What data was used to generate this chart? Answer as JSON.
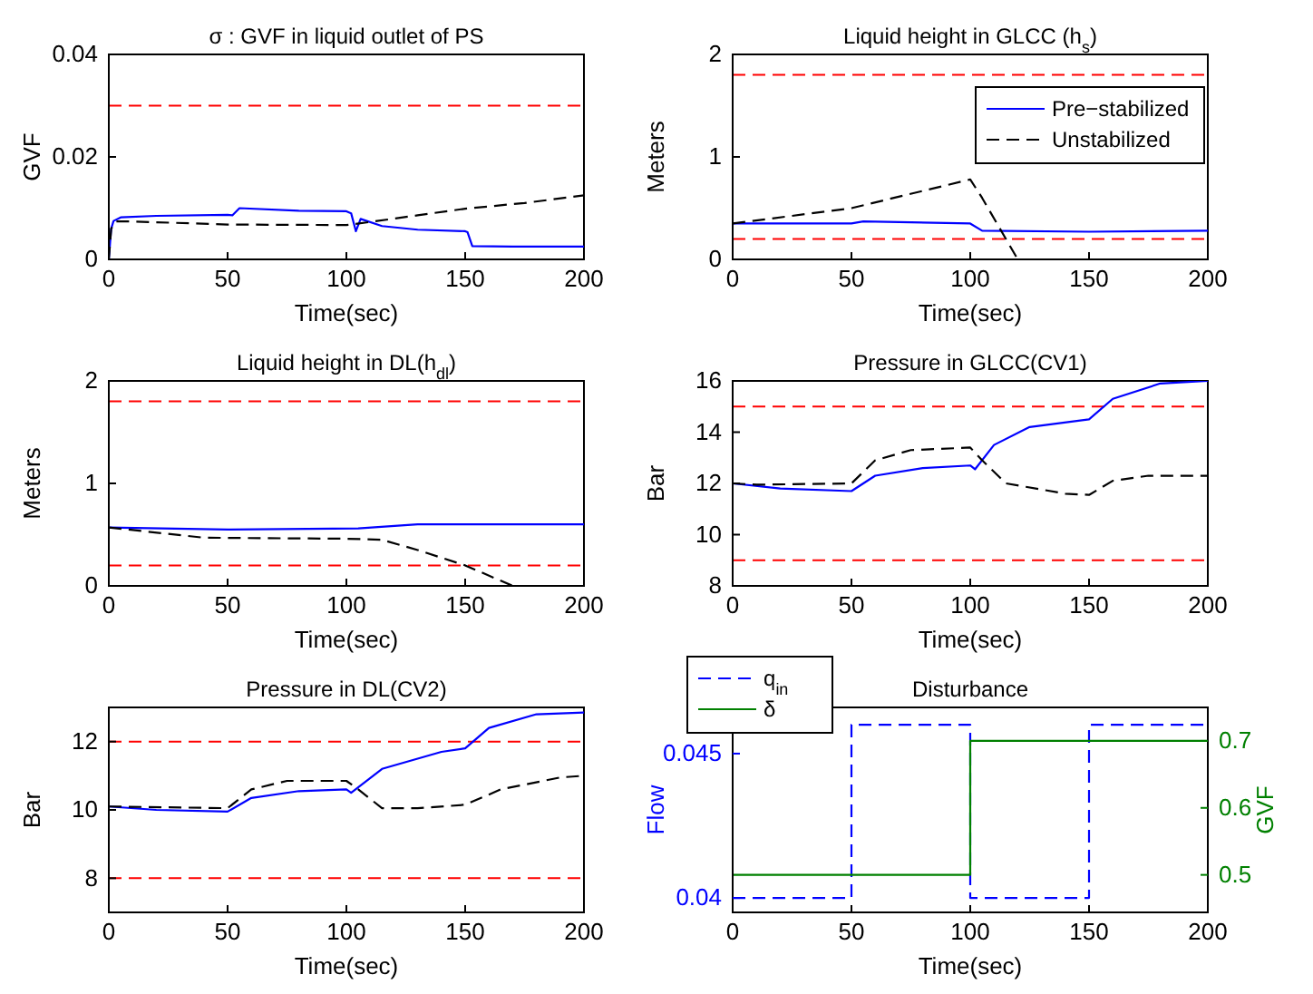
{
  "chart_data": [
    {
      "type": "line",
      "title": "σ : GVF in liquid outlet of PS",
      "xlabel": "Time(sec)",
      "ylabel": "GVF",
      "xlim": [
        0,
        200
      ],
      "xticks": [
        0,
        50,
        100,
        150,
        200
      ],
      "ylim": [
        0,
        0.04
      ],
      "yticks": [
        0,
        0.02,
        0.04
      ],
      "legend": false,
      "ref_lines": [
        {
          "axis": "y",
          "value": 0.03,
          "color": "#ff0000",
          "line_style": "dashed"
        }
      ],
      "series": [
        {
          "color": "#0000ff",
          "line_style": "solid",
          "x": [
            0,
            1,
            2,
            5,
            20,
            50,
            52,
            55,
            80,
            100,
            102,
            104,
            106,
            115,
            130,
            150,
            151,
            153,
            170,
            200
          ],
          "values": [
            0,
            0.006,
            0.0075,
            0.0082,
            0.0085,
            0.0087,
            0.0086,
            0.01,
            0.0095,
            0.0094,
            0.009,
            0.0055,
            0.0079,
            0.0065,
            0.0058,
            0.0055,
            0.0053,
            0.0026,
            0.0025,
            0.0025
          ]
        },
        {
          "color": "#000000",
          "line_style": "dashed",
          "x": [
            0,
            1,
            3,
            10,
            50,
            100,
            110,
            130,
            150,
            175,
            200
          ],
          "values": [
            0,
            0.006,
            0.0074,
            0.0074,
            0.0068,
            0.0067,
            0.0073,
            0.0086,
            0.0099,
            0.011,
            0.0125
          ]
        }
      ]
    },
    {
      "type": "line",
      "title": "Liquid height in GLCC (h$_{s}$)",
      "xlabel": "Time(sec)",
      "ylabel": "Meters",
      "xlim": [
        0,
        200
      ],
      "xticks": [
        0,
        50,
        100,
        150,
        200
      ],
      "ylim": [
        0,
        2
      ],
      "yticks": [
        0,
        1,
        2
      ],
      "legend": "top right",
      "ref_lines": [
        {
          "axis": "y",
          "value": 1.8,
          "color": "#ff0000",
          "line_style": "dashed"
        },
        {
          "axis": "y",
          "value": 0.2,
          "color": "#ff0000",
          "line_style": "dashed"
        }
      ],
      "series": [
        {
          "name": "Pre−stabilized",
          "color": "#0000ff",
          "line_style": "solid",
          "x": [
            0,
            50,
            55,
            100,
            105,
            150,
            200
          ],
          "values": [
            0.35,
            0.35,
            0.37,
            0.35,
            0.28,
            0.27,
            0.28
          ]
        },
        {
          "name": "Unstabilized",
          "color": "#000000",
          "line_style": "dashed",
          "x": [
            0,
            50,
            100,
            105,
            120
          ],
          "values": [
            0.35,
            0.5,
            0.78,
            0.6,
            0
          ]
        }
      ]
    },
    {
      "type": "line",
      "title": "Liquid height in DL(h$_{dl}$)",
      "xlabel": "Time(sec)",
      "ylabel": "Meters",
      "xlim": [
        0,
        200
      ],
      "xticks": [
        0,
        50,
        100,
        150,
        200
      ],
      "ylim": [
        0,
        2
      ],
      "yticks": [
        0,
        1,
        2
      ],
      "legend": false,
      "ref_lines": [
        {
          "axis": "y",
          "value": 1.8,
          "color": "#ff0000",
          "line_style": "dashed"
        },
        {
          "axis": "y",
          "value": 0.2,
          "color": "#ff0000",
          "line_style": "dashed"
        }
      ],
      "series": [
        {
          "color": "#0000ff",
          "line_style": "solid",
          "x": [
            0,
            50,
            105,
            130,
            200
          ],
          "values": [
            0.57,
            0.55,
            0.56,
            0.6,
            0.6
          ]
        },
        {
          "color": "#000000",
          "line_style": "dashed",
          "x": [
            0,
            40,
            100,
            115,
            130,
            150,
            170
          ],
          "values": [
            0.57,
            0.47,
            0.46,
            0.45,
            0.35,
            0.2,
            0
          ]
        }
      ]
    },
    {
      "type": "line",
      "title": "Pressure in GLCC(CV1)",
      "xlabel": "Time(sec)",
      "ylabel": "Bar",
      "xlim": [
        0,
        200
      ],
      "xticks": [
        0,
        50,
        100,
        150,
        200
      ],
      "ylim": [
        8,
        16
      ],
      "yticks": [
        8,
        10,
        12,
        14,
        16
      ],
      "legend": false,
      "ref_lines": [
        {
          "axis": "y",
          "value": 15,
          "color": "#ff0000",
          "line_style": "dashed"
        },
        {
          "axis": "y",
          "value": 9,
          "color": "#ff0000",
          "line_style": "dashed"
        }
      ],
      "series": [
        {
          "color": "#0000ff",
          "line_style": "solid",
          "x": [
            0,
            20,
            50,
            60,
            80,
            100,
            102,
            110,
            125,
            150,
            160,
            180,
            200
          ],
          "values": [
            12,
            11.8,
            11.7,
            12.3,
            12.6,
            12.7,
            12.55,
            13.5,
            14.2,
            14.5,
            15.3,
            15.9,
            16
          ]
        },
        {
          "color": "#000000",
          "line_style": "dashed",
          "x": [
            0,
            10,
            50,
            60,
            75,
            100,
            105,
            115,
            140,
            150,
            160,
            175,
            200
          ],
          "values": [
            12,
            11.95,
            12,
            12.9,
            13.3,
            13.4,
            12.9,
            12,
            11.6,
            11.55,
            12.1,
            12.3,
            12.3
          ]
        }
      ]
    },
    {
      "type": "line",
      "title": "Pressure in DL(CV2)",
      "xlabel": "Time(sec)",
      "ylabel": "Bar",
      "xlim": [
        0,
        200
      ],
      "xticks": [
        0,
        50,
        100,
        150,
        200
      ],
      "ylim": [
        7,
        13
      ],
      "yticks": [
        8,
        10,
        12
      ],
      "legend": false,
      "ref_lines": [
        {
          "axis": "y",
          "value": 12,
          "color": "#ff0000",
          "line_style": "dashed"
        },
        {
          "axis": "y",
          "value": 8,
          "color": "#ff0000",
          "line_style": "dashed"
        }
      ],
      "series": [
        {
          "color": "#0000ff",
          "line_style": "solid",
          "x": [
            0,
            20,
            50,
            60,
            80,
            100,
            102,
            115,
            140,
            150,
            160,
            180,
            200
          ],
          "values": [
            10.1,
            10,
            9.95,
            10.35,
            10.55,
            10.6,
            10.5,
            11.2,
            11.7,
            11.8,
            12.4,
            12.8,
            12.85
          ]
        },
        {
          "color": "#000000",
          "line_style": "dashed",
          "x": [
            0,
            50,
            60,
            75,
            100,
            105,
            115,
            130,
            150,
            165,
            190,
            200
          ],
          "values": [
            10.1,
            10.05,
            10.6,
            10.85,
            10.85,
            10.6,
            10.05,
            10.05,
            10.15,
            10.6,
            10.95,
            11
          ]
        }
      ]
    },
    {
      "type": "step",
      "title": "Disturbance",
      "xlabel": "Time(sec)",
      "ylabel": "Flow",
      "y2label": "GVF",
      "xlim": [
        0,
        200
      ],
      "xticks": [
        0,
        50,
        100,
        150,
        200
      ],
      "ylim": [
        0.0395,
        0.0466
      ],
      "yticks": [
        0.04,
        0.045
      ],
      "y2lim": [
        0.444,
        0.75
      ],
      "y2ticks": [
        0.5,
        0.6,
        0.7
      ],
      "legend": "top left",
      "series": [
        {
          "name": "q$_{in}$",
          "color": "#0000ff",
          "line_style": "dashed",
          "x": [
            0,
            50,
            100,
            150,
            200
          ],
          "values": [
            0.04,
            0.046,
            0.04,
            0.046,
            0.046
          ]
        },
        {
          "name": "δ",
          "color": "#008000",
          "line_style": "solid",
          "axis": "y2",
          "x": [
            0,
            100,
            200
          ],
          "values": [
            0.5,
            0.7,
            0.7
          ]
        }
      ]
    }
  ]
}
